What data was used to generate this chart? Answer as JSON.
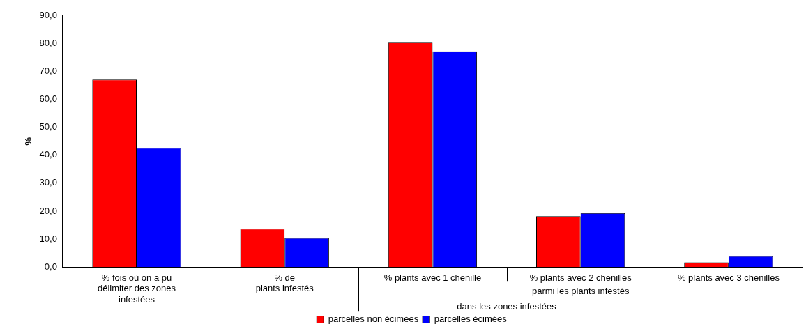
{
  "chart_data": {
    "type": "bar",
    "ylabel": "%",
    "categories": [
      "% fois où on a pu\ndélimiter des zones\ninfestées",
      "% de\nplants infestés",
      "% plants avec 1 chenille",
      "% plants avec 2 chenilles",
      "% plants avec 3 chenilles"
    ],
    "series": [
      {
        "name": "parcelles non écimées",
        "color": "#ff0000",
        "values": [
          67.0,
          13.7,
          80.5,
          18.2,
          1.7
        ]
      },
      {
        "name": "parcelles écimées",
        "color": "#0000ff",
        "values": [
          42.6,
          10.4,
          77.1,
          19.3,
          3.9
        ]
      }
    ],
    "ylim": [
      0,
      90
    ],
    "yticks": [
      {
        "value": 0,
        "label": "0,0"
      },
      {
        "value": 10,
        "label": "10,0"
      },
      {
        "value": 20,
        "label": "20,0"
      },
      {
        "value": 30,
        "label": "30,0"
      },
      {
        "value": 40,
        "label": "40,0"
      },
      {
        "value": 50,
        "label": "50,0"
      },
      {
        "value": 60,
        "label": "60,0"
      },
      {
        "value": 70,
        "label": "70,0"
      },
      {
        "value": 80,
        "label": "80,0"
      },
      {
        "value": 90,
        "label": "90,0"
      }
    ],
    "annotations": [
      "parmi les plants infestés",
      "dans les zones infestées"
    ],
    "grid": false,
    "legend": "bottom"
  }
}
